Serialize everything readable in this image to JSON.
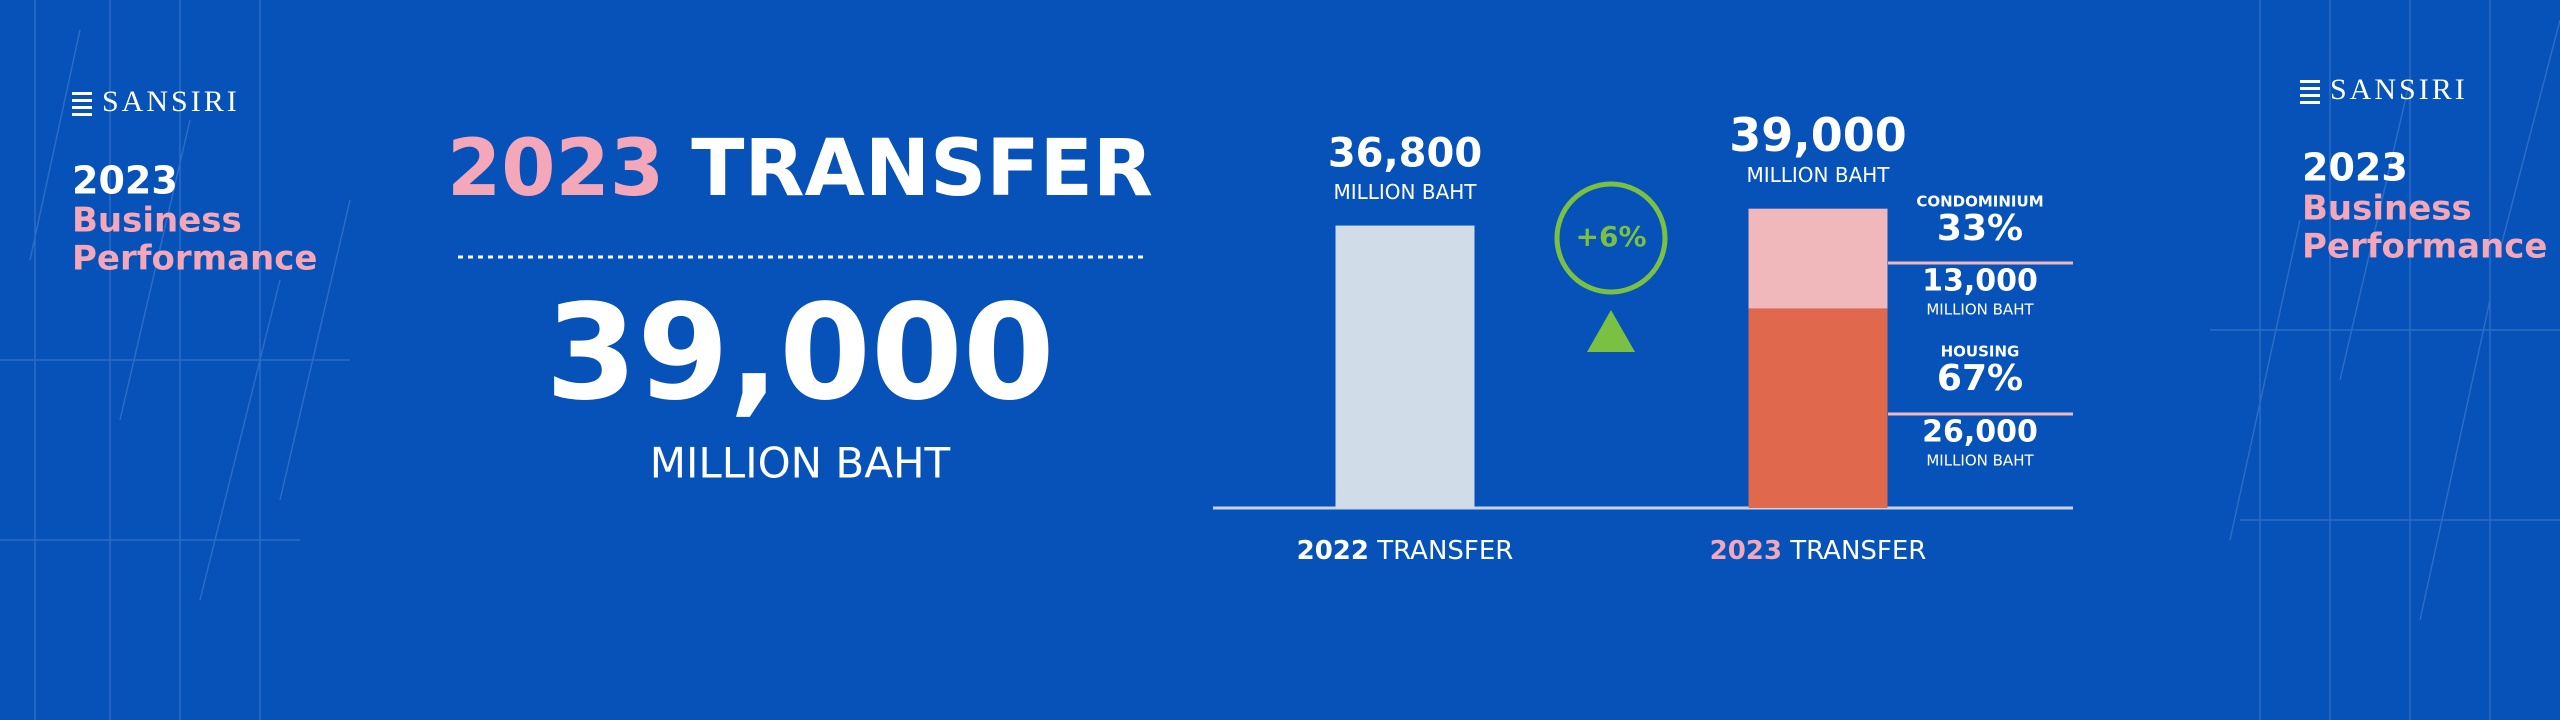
{
  "brand_left": {
    "logo": "SANSIRI",
    "year": "2023",
    "line1": "Business",
    "line2": "Performance"
  },
  "brand_right": {
    "logo": "SANSIRI",
    "year": "2023",
    "line1": "Business",
    "line2": "Performance"
  },
  "headline": {
    "year": "2023",
    "word": "TRANSFER",
    "total": "39,000",
    "unit": "MILLION BAHT"
  },
  "chart_data": {
    "type": "bar",
    "stacked": true,
    "categories": [
      "2022",
      "2023"
    ],
    "category_suffix": "TRANSFER",
    "unit": "MILLION BAHT",
    "totals": [
      36800,
      39000
    ],
    "total_labels": [
      "36,800",
      "39,000"
    ],
    "change": 6,
    "change_label": "+6%",
    "series": [
      {
        "color": "#d0dce8",
        "values": [
          36800,
          null
        ]
      },
      {
        "name": "HOUSING",
        "color": "#e0684c",
        "values": [
          null,
          26000
        ],
        "value_labels": [
          null,
          "26,000"
        ],
        "shares": [
          null,
          67
        ],
        "share_labels": [
          null,
          "67%"
        ]
      },
      {
        "name": "CONDOMINIUM",
        "color": "#f0b8bb",
        "values": [
          null,
          13000
        ],
        "value_labels": [
          null,
          "13,000"
        ],
        "shares": [
          null,
          33
        ],
        "share_labels": [
          null,
          "33%"
        ]
      }
    ],
    "ylim": [
      0,
      40000
    ]
  }
}
